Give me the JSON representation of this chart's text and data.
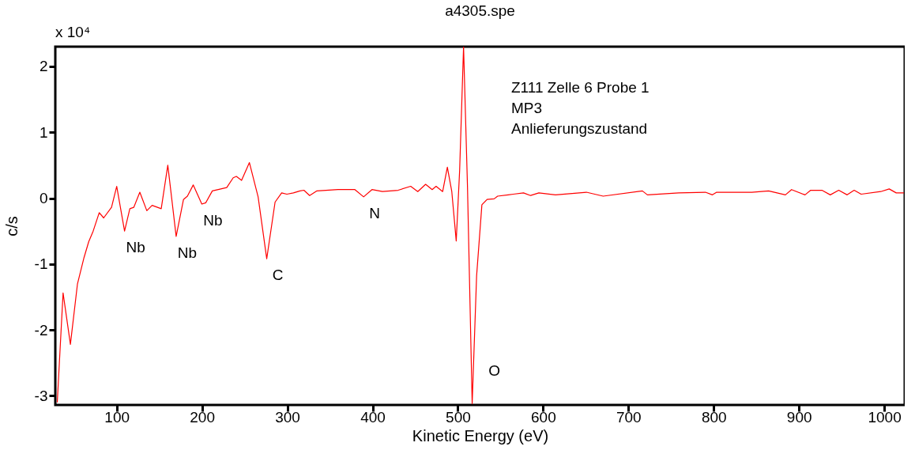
{
  "chart_data": {
    "type": "line",
    "title": "a4305.spe",
    "xlabel": "Kinetic Energy (eV)",
    "ylabel": "c/s",
    "xlim": [
      28,
      1024
    ],
    "ylim": [
      -3.14,
      2.3
    ],
    "xticks": [
      100,
      200,
      300,
      400,
      500,
      600,
      700,
      800,
      900,
      1000
    ],
    "yticks": [
      -3,
      -2,
      -1,
      0,
      1,
      2
    ],
    "grid": false,
    "marker": "none",
    "line_style": "solid",
    "annotations": [
      "x 10⁴",
      "Z111 Zelle 6  Probe 1",
      "MP3",
      "Anlieferungszustand",
      {
        "text": "Nb",
        "x": 109.2,
        "y": -0.5
      },
      {
        "text": "Nb",
        "x": 169.7,
        "y": -0.58
      },
      {
        "text": "Nb",
        "x": 199.8,
        "y": -0.09
      },
      {
        "text": "C",
        "x": 275.9,
        "y": -0.92
      },
      {
        "text": "N",
        "x": 389.5,
        "y": 0.02
      },
      {
        "text": "O",
        "x": 516.8,
        "y": -3.12
      }
    ],
    "series": [
      {
        "color": "#ff0000",
        "x": [
          30.3,
          37.1,
          45.7,
          54,
          61.7,
          67.2,
          72.4,
          79.5,
          84.7,
          93.9,
          100,
          109.2,
          115.4,
          120,
          127.1,
          135.3,
          141.5,
          152.2,
          159.9,
          169.7,
          178.3,
          182.9,
          189.7,
          199.8,
          204.4,
          212.1,
          229,
          236.6,
          240.3,
          246.4,
          255.6,
          265.8,
          275.9,
          285.7,
          293.4,
          299.5,
          307.2,
          314.9,
          319.5,
          326.2,
          334.8,
          359.4,
          379.3,
          389.5,
          399.3,
          411.6,
          430,
          444.7,
          453,
          462.2,
          469.9,
          474.5,
          482.2,
          487.7,
          492.9,
          498.1,
          502.1,
          506.7,
          511.3,
          516.8,
          522,
          528.2,
          534.3,
          542.6,
          546.6,
          559,
          565,
          577,
          585.3,
          595,
          614.5,
          650.7,
          670.4,
          716.4,
          722.3,
          759,
          790.3,
          798.5,
          803.5,
          844.6,
          864.4,
          884.1,
          891.3,
          907.1,
          913.7,
          926.9,
          936.7,
          946.6,
          956.5,
          964.7,
          972.9,
          995.9,
          1005.8,
          1014,
          1023
        ],
        "values": [
          -3.1,
          -1.44,
          -2.22,
          -1.3,
          -0.9,
          -0.66,
          -0.5,
          -0.22,
          -0.3,
          -0.14,
          0.18,
          -0.5,
          -0.16,
          -0.14,
          0.09,
          -0.19,
          -0.11,
          -0.16,
          0.5,
          -0.58,
          -0.02,
          0.03,
          0.2,
          -0.09,
          -0.07,
          0.11,
          0.16,
          0.31,
          0.33,
          0.27,
          0.54,
          0.02,
          -0.92,
          -0.06,
          0.08,
          0.06,
          0.08,
          0.11,
          0.12,
          0.04,
          0.11,
          0.13,
          0.13,
          0.02,
          0.13,
          0.1,
          0.12,
          0.18,
          0.1,
          0.21,
          0.13,
          0.18,
          0.1,
          0.47,
          0.1,
          -0.65,
          0.42,
          2.3,
          0.18,
          -3.12,
          -1.18,
          -0.1,
          -0.02,
          -0.01,
          0.03,
          0.05,
          0.06,
          0.08,
          0.04,
          0.08,
          0.05,
          0.09,
          0.03,
          0.11,
          0.05,
          0.08,
          0.09,
          0.05,
          0.09,
          0.09,
          0.11,
          0.05,
          0.13,
          0.05,
          0.12,
          0.12,
          0.05,
          0.12,
          0.05,
          0.12,
          0.06,
          0.1,
          0.14,
          0.08,
          0.08
        ]
      }
    ]
  }
}
